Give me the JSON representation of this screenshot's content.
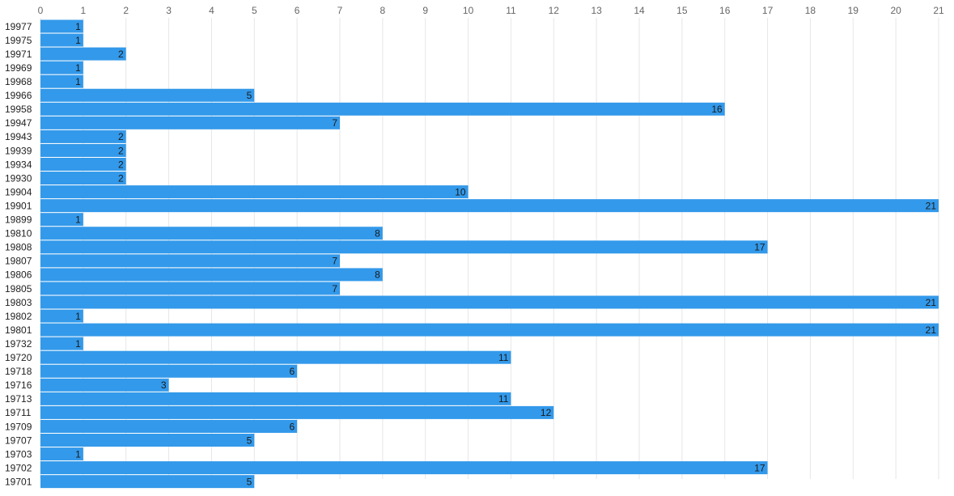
{
  "chart_data": {
    "type": "bar",
    "orientation": "horizontal",
    "title": "",
    "xlabel": "",
    "ylabel": "",
    "xlim": [
      0,
      21
    ],
    "x_ticks": [
      0,
      1,
      2,
      3,
      4,
      5,
      6,
      7,
      8,
      9,
      10,
      11,
      12,
      13,
      14,
      15,
      16,
      17,
      18,
      19,
      20,
      21
    ],
    "grid": true,
    "tick_position": "top",
    "data_labels": true,
    "bar_color": "#3399ea",
    "categories": [
      "19977",
      "19975",
      "19971",
      "19969",
      "19968",
      "19966",
      "19958",
      "19947",
      "19943",
      "19939",
      "19934",
      "19930",
      "19904",
      "19901",
      "19899",
      "19810",
      "19808",
      "19807",
      "19806",
      "19805",
      "19803",
      "19802",
      "19801",
      "19732",
      "19720",
      "19718",
      "19716",
      "19713",
      "19711",
      "19709",
      "19707",
      "19703",
      "19702",
      "19701"
    ],
    "values": [
      1,
      1,
      2,
      1,
      1,
      5,
      16,
      7,
      2,
      2,
      2,
      2,
      10,
      21,
      1,
      8,
      17,
      7,
      8,
      7,
      21,
      1,
      21,
      1,
      11,
      6,
      3,
      11,
      12,
      6,
      5,
      1,
      17,
      5
    ]
  }
}
